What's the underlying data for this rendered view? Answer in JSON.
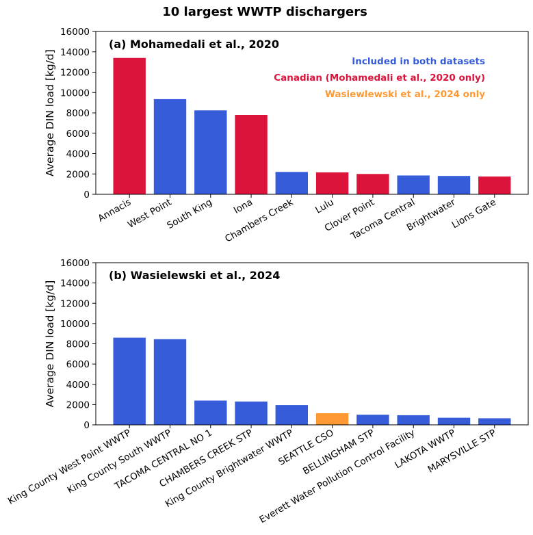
{
  "figure_title": "10 largest WWTP dischargers",
  "colors": {
    "both": "#375cd9",
    "canadian": "#dc143c",
    "wasielewski_only": "#ff9933"
  },
  "legend": [
    {
      "key": "both",
      "label": "Included in both datasets"
    },
    {
      "key": "canadian",
      "label": "Canadian (Mohamedali et al., 2020 only)"
    },
    {
      "key": "wasielewski_only",
      "label": "Wasiewlewski et al., 2024 only"
    }
  ],
  "chart_data": [
    {
      "type": "bar",
      "title": "(a) Mohamedali et al., 2020",
      "xlabel": "",
      "ylabel": "Average DIN load [kg/d]",
      "ylim": [
        0,
        16000
      ],
      "yticks": [
        0,
        2000,
        4000,
        6000,
        8000,
        10000,
        12000,
        14000,
        16000
      ],
      "grid": false,
      "legend_position": "top-right",
      "categories": [
        "Annacis",
        "West Point",
        "South King",
        "Iona",
        "Chambers Creek",
        "Lulu",
        "Clover Point",
        "Tacoma Central",
        "Brightwater",
        "Lions Gate"
      ],
      "values": [
        13400,
        9350,
        8250,
        7800,
        2200,
        2150,
        2000,
        1850,
        1800,
        1750
      ],
      "groups": [
        "canadian",
        "both",
        "both",
        "canadian",
        "both",
        "canadian",
        "canadian",
        "both",
        "both",
        "canadian"
      ]
    },
    {
      "type": "bar",
      "title": "(b) Wasielewski et al., 2024",
      "xlabel": "",
      "ylabel": "Average DIN load [kg/d]",
      "ylim": [
        0,
        16000
      ],
      "yticks": [
        0,
        2000,
        4000,
        6000,
        8000,
        10000,
        12000,
        14000,
        16000
      ],
      "grid": false,
      "categories": [
        "King County West Point WWTP",
        "King County South WWTP",
        "TACOMA CENTRAL NO 1",
        "CHAMBERS CREEK STP",
        "King County Brightwater WWTP",
        "SEATTLE CSO",
        "BELLINGHAM STP",
        "Everett Water Pollution Control Facility",
        "LAKOTA WWTP",
        "MARYSVILLE STP"
      ],
      "values": [
        8600,
        8450,
        2400,
        2300,
        1950,
        1150,
        1000,
        950,
        700,
        650
      ],
      "groups": [
        "both",
        "both",
        "both",
        "both",
        "both",
        "wasielewski_only",
        "both",
        "both",
        "both",
        "both"
      ]
    }
  ]
}
